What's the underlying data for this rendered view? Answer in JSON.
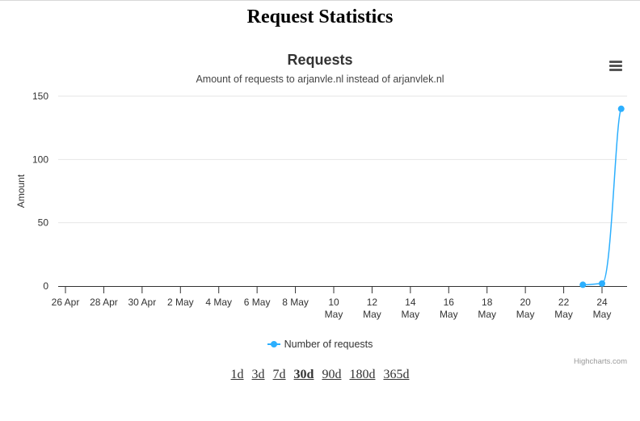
{
  "page": {
    "title": "Request Statistics"
  },
  "chart": {
    "title": "Requests",
    "subtitle": "Amount of requests to arjanvle.nl instead of arjanvlek.nl",
    "menu_icon": "hamburger-menu-icon",
    "credits": "Highcharts.com",
    "legend_label": "Number of requests"
  },
  "range_links": [
    {
      "label": "1d",
      "active": false
    },
    {
      "label": "3d",
      "active": false
    },
    {
      "label": "7d",
      "active": false
    },
    {
      "label": "30d",
      "active": true
    },
    {
      "label": "90d",
      "active": false
    },
    {
      "label": "180d",
      "active": false
    },
    {
      "label": "365d",
      "active": false
    }
  ],
  "colors": {
    "series": "#2caffe",
    "grid": "#e6e6e6",
    "axis": "#333333"
  },
  "chart_data": {
    "type": "line",
    "title": "Requests",
    "subtitle": "Amount of requests to arjanvle.nl instead of arjanvlek.nl",
    "ylabel": "Amount",
    "xlabel": "",
    "ylim": [
      0,
      150
    ],
    "yticks": [
      0,
      50,
      100,
      150
    ],
    "x_ticks": [
      {
        "date": "26 Apr",
        "lines": [
          "26 Apr"
        ]
      },
      {
        "date": "28 Apr",
        "lines": [
          "28 Apr"
        ]
      },
      {
        "date": "30 Apr",
        "lines": [
          "30 Apr"
        ]
      },
      {
        "date": "2 May",
        "lines": [
          "2 May"
        ]
      },
      {
        "date": "4 May",
        "lines": [
          "4 May"
        ]
      },
      {
        "date": "6 May",
        "lines": [
          "6 May"
        ]
      },
      {
        "date": "8 May",
        "lines": [
          "8 May"
        ]
      },
      {
        "date": "10 May",
        "lines": [
          "10",
          "May"
        ]
      },
      {
        "date": "12 May",
        "lines": [
          "12",
          "May"
        ]
      },
      {
        "date": "14 May",
        "lines": [
          "14",
          "May"
        ]
      },
      {
        "date": "16 May",
        "lines": [
          "16",
          "May"
        ]
      },
      {
        "date": "18 May",
        "lines": [
          "18",
          "May"
        ]
      },
      {
        "date": "20 May",
        "lines": [
          "20",
          "May"
        ]
      },
      {
        "date": "22 May",
        "lines": [
          "22",
          "May"
        ]
      },
      {
        "date": "24 May",
        "lines": [
          "24",
          "May"
        ]
      }
    ],
    "grid": true,
    "legend_position": "bottom-center",
    "series": [
      {
        "name": "Number of requests",
        "points": [
          {
            "x": "23 May",
            "y": 1
          },
          {
            "x": "24 May",
            "y": 2
          },
          {
            "x": "25 May",
            "y": 140
          }
        ]
      }
    ]
  }
}
